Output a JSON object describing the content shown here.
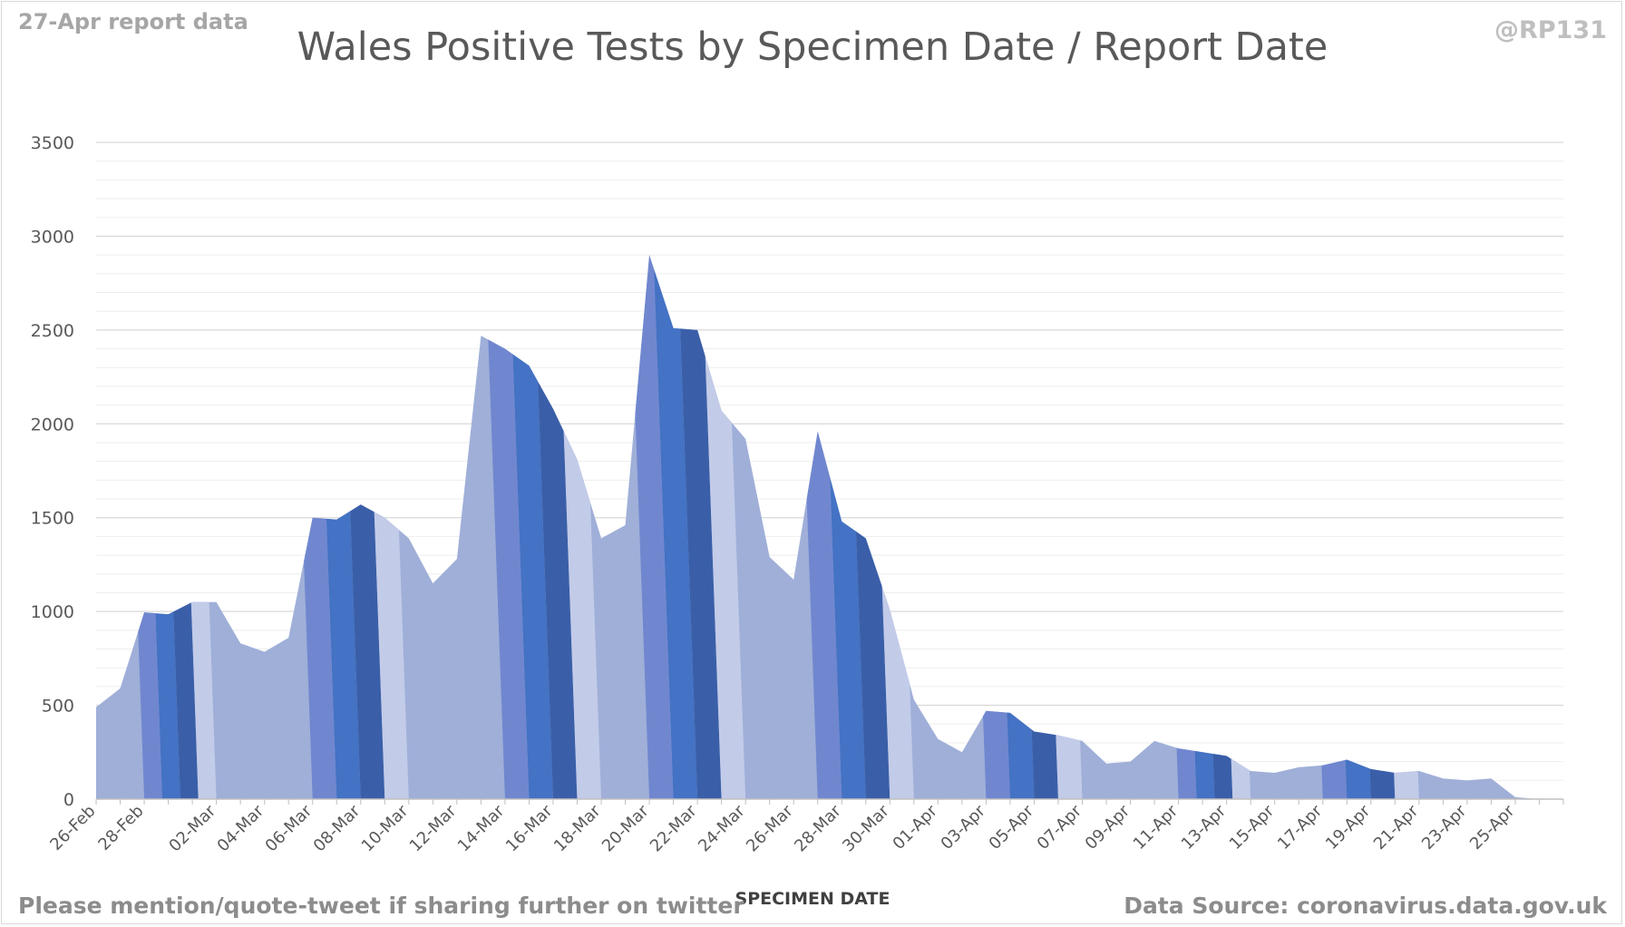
{
  "header": {
    "report_note": "27-Apr report data",
    "handle": "@RP131"
  },
  "footer": {
    "left_note": "Please mention/quote-tweet if sharing further on twitter",
    "source": "Data Source: coronavirus.data.gov.uk"
  },
  "colors": {
    "light": "#9fafd8",
    "mid": "#7087cf",
    "bright": "#4472c4",
    "dark": "#3a5fa8",
    "pale": "#c2cbe8",
    "grid_major": "#d9d9d9",
    "grid_minor": "#eeeeee",
    "axis_text": "#595959"
  },
  "chart_data": {
    "type": "area",
    "title": "Wales Positive Tests by Specimen Date / Report Date",
    "xlabel": "SPECIMEN DATE",
    "ylabel": "",
    "ylim": [
      0,
      3500
    ],
    "yticks": [
      0,
      500,
      1000,
      1500,
      2000,
      2500,
      3000,
      3500
    ],
    "grid": true,
    "legend": "none",
    "x": [
      "26-Feb",
      "27-Feb",
      "28-Feb",
      "29-Feb",
      "01-Mar",
      "02-Mar",
      "03-Mar",
      "04-Mar",
      "05-Mar",
      "06-Mar",
      "07-Mar",
      "08-Mar",
      "09-Mar",
      "10-Mar",
      "11-Mar",
      "12-Mar",
      "13-Mar",
      "14-Mar",
      "15-Mar",
      "16-Mar",
      "17-Mar",
      "18-Mar",
      "19-Mar",
      "20-Mar",
      "21-Mar",
      "22-Mar",
      "23-Mar",
      "24-Mar",
      "25-Mar",
      "26-Mar",
      "27-Mar",
      "28-Mar",
      "29-Mar",
      "30-Mar",
      "31-Mar",
      "01-Apr",
      "02-Apr",
      "03-Apr",
      "04-Apr",
      "05-Apr",
      "06-Apr",
      "07-Apr",
      "08-Apr",
      "09-Apr",
      "10-Apr",
      "11-Apr",
      "12-Apr",
      "13-Apr",
      "14-Apr",
      "15-Apr",
      "16-Apr",
      "17-Apr",
      "18-Apr",
      "19-Apr",
      "20-Apr",
      "21-Apr",
      "22-Apr",
      "23-Apr",
      "24-Apr",
      "25-Apr",
      "26-Apr",
      "27-Apr"
    ],
    "x_tick_labels": [
      "26-Feb",
      "28-Feb",
      "02-Mar",
      "04-Mar",
      "06-Mar",
      "08-Mar",
      "10-Mar",
      "12-Mar",
      "14-Mar",
      "16-Mar",
      "18-Mar",
      "20-Mar",
      "22-Mar",
      "24-Mar",
      "26-Mar",
      "28-Mar",
      "30-Mar",
      "01-Apr",
      "03-Apr",
      "05-Apr",
      "07-Apr",
      "09-Apr",
      "11-Apr",
      "13-Apr",
      "15-Apr",
      "17-Apr",
      "19-Apr",
      "21-Apr",
      "23-Apr",
      "25-Apr"
    ],
    "series": [
      {
        "values": [
          490,
          590,
          995,
          985,
          1050,
          1050,
          830,
          785,
          860,
          1500,
          1490,
          1570,
          1500,
          1390,
          1150,
          1280,
          2470,
          2400,
          2310,
          2080,
          1810,
          1390,
          1460,
          2900,
          2510,
          2500,
          2070,
          1920,
          1290,
          1170,
          1960,
          1480,
          1390,
          1010,
          530,
          320,
          250,
          470,
          460,
          360,
          340,
          310,
          190,
          200,
          310,
          270,
          250,
          230,
          150,
          140,
          170,
          180,
          210,
          160,
          140,
          150,
          110,
          100,
          110,
          10,
          0,
          0
        ]
      }
    ]
  }
}
